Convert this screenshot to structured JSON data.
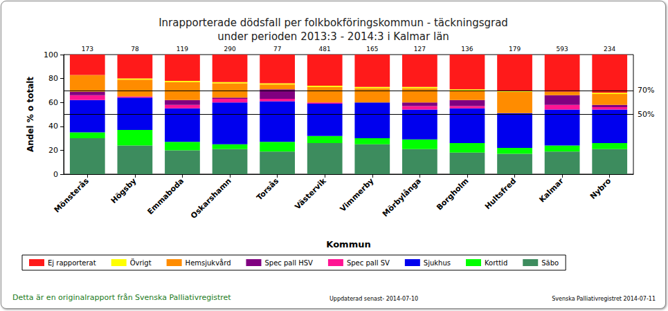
{
  "chart_data": {
    "type": "bar",
    "title": "Inrapporterade dödsfall per folkbokföringskommun - täckningsgrad\nunder perioden 2013:3 - 2014:3 i Kalmar län",
    "x_label": "Kommun",
    "y_label": "Andel % o totalt",
    "categories": [
      "Mönsterås",
      "Högsby",
      "Emmaboda",
      "Oskarshamn",
      "Torsås",
      "Västervik",
      "Vimmerby",
      "Mörbylånga",
      "Borgholm",
      "Hultsfred",
      "Kalmar",
      "Nybro"
    ],
    "totals": [
      173,
      78,
      119,
      290,
      77,
      481,
      165,
      127,
      136,
      179,
      593,
      234
    ],
    "series": [
      {
        "name": "Ej rapporterat",
        "color": "#ff1a1a",
        "values": [
          17,
          20,
          22,
          23,
          24,
          26,
          27,
          27,
          29,
          30,
          31,
          32
        ]
      },
      {
        "name": "Övrigt",
        "color": "#ffff00",
        "values": [
          0,
          1,
          1,
          1,
          1,
          1,
          1,
          1,
          1,
          1,
          0,
          1
        ]
      },
      {
        "name": "Hemsjukvård",
        "color": "#ff8c00",
        "values": [
          14,
          14,
          15,
          12,
          4,
          13,
          12,
          12,
          8,
          18,
          3,
          9
        ]
      },
      {
        "name": "Spec pall HSV",
        "color": "#800080",
        "values": [
          3,
          0,
          4,
          1,
          8,
          0,
          0,
          3,
          5,
          0,
          8,
          2
        ]
      },
      {
        "name": "Spec pall SV",
        "color": "#ff1493",
        "values": [
          4,
          1,
          3,
          3,
          2,
          1,
          0,
          3,
          2,
          0,
          4,
          2
        ]
      },
      {
        "name": "Sjukhus",
        "color": "#0000ee",
        "values": [
          27,
          27,
          28,
          35,
          34,
          27,
          30,
          25,
          29,
          29,
          30,
          28
        ]
      },
      {
        "name": "Korttid",
        "color": "#00ff00",
        "values": [
          5,
          13,
          7,
          4,
          8,
          6,
          5,
          8,
          8,
          5,
          5,
          5
        ]
      },
      {
        "name": "Säbo",
        "color": "#3d8c5e",
        "values": [
          30,
          24,
          20,
          21,
          19,
          26,
          25,
          21,
          18,
          17,
          19,
          21
        ]
      }
    ],
    "reference_lines": [
      {
        "value": 70,
        "label": "70%"
      },
      {
        "value": 50,
        "label": "50%"
      }
    ],
    "ylim": [
      0,
      100
    ],
    "yticks": [
      0,
      20,
      40,
      60,
      80,
      100
    ],
    "stacked": true,
    "grid": false,
    "legend": "bottom-left",
    "footer": {
      "left": "Detta är en originalrapport från Svenska Palliativregistret",
      "center": "Uppdaterad senast- 2014-07-10",
      "right": "Svenska Palliativregistret 2014-07-11"
    }
  }
}
